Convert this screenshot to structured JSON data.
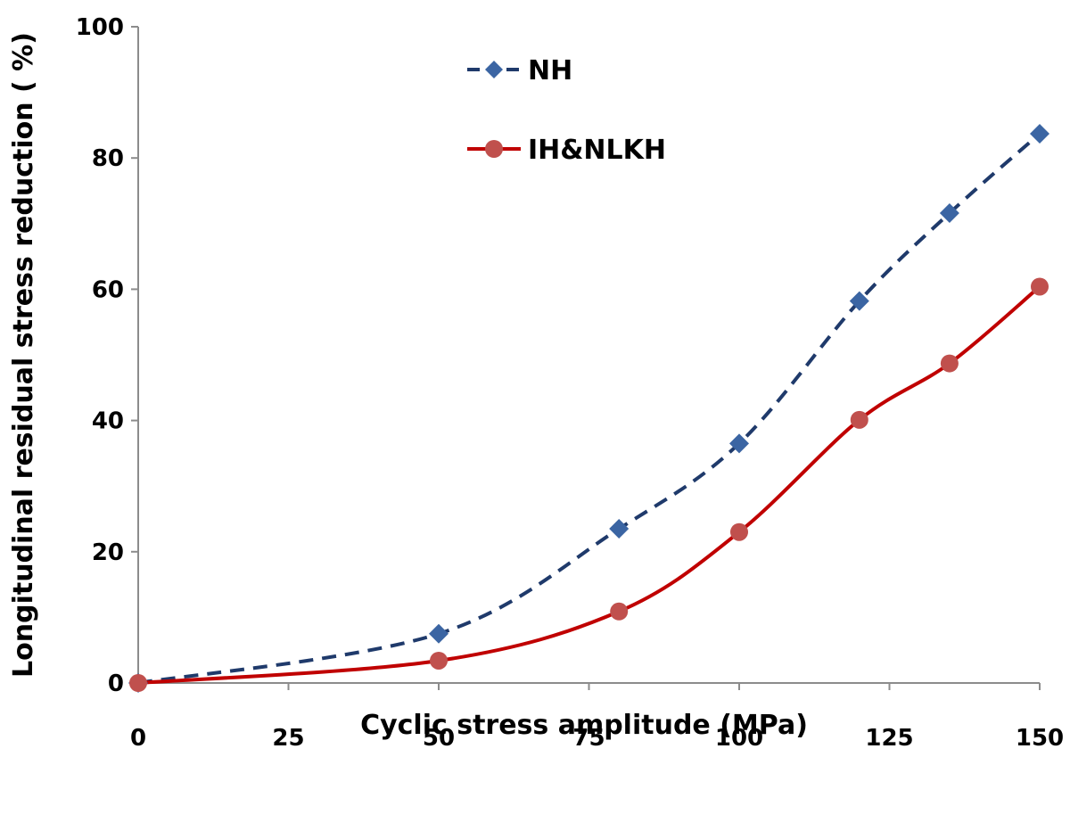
{
  "chart_data": {
    "type": "line",
    "title": "",
    "xlabel": "Cyclic stress amplitude (MPa)",
    "ylabel": "Longitudinal residual stress reduction ( %)",
    "xlim": [
      0,
      150
    ],
    "ylim": [
      0,
      100
    ],
    "xticks": [
      0,
      25,
      50,
      75,
      100,
      125,
      150
    ],
    "yticks": [
      0,
      20,
      40,
      60,
      80,
      100
    ],
    "grid": false,
    "legend_position": "top-center",
    "series": [
      {
        "name": "NH",
        "color": "#1f3a6b",
        "marker_color": "#3b65a3",
        "marker": "diamond",
        "line_style": "dashed",
        "x": [
          0,
          50,
          80,
          100,
          120,
          135,
          150
        ],
        "y": [
          0,
          7.5,
          23.5,
          36.5,
          58.2,
          71.6,
          83.7
        ]
      },
      {
        "name": "IH&NLKH",
        "color": "#c00000",
        "marker_color": "#c0504d",
        "marker": "circle",
        "line_style": "solid",
        "x": [
          0,
          50,
          80,
          100,
          120,
          135,
          150
        ],
        "y": [
          0,
          3.4,
          10.9,
          23,
          40.1,
          48.7,
          60.4
        ]
      }
    ]
  }
}
